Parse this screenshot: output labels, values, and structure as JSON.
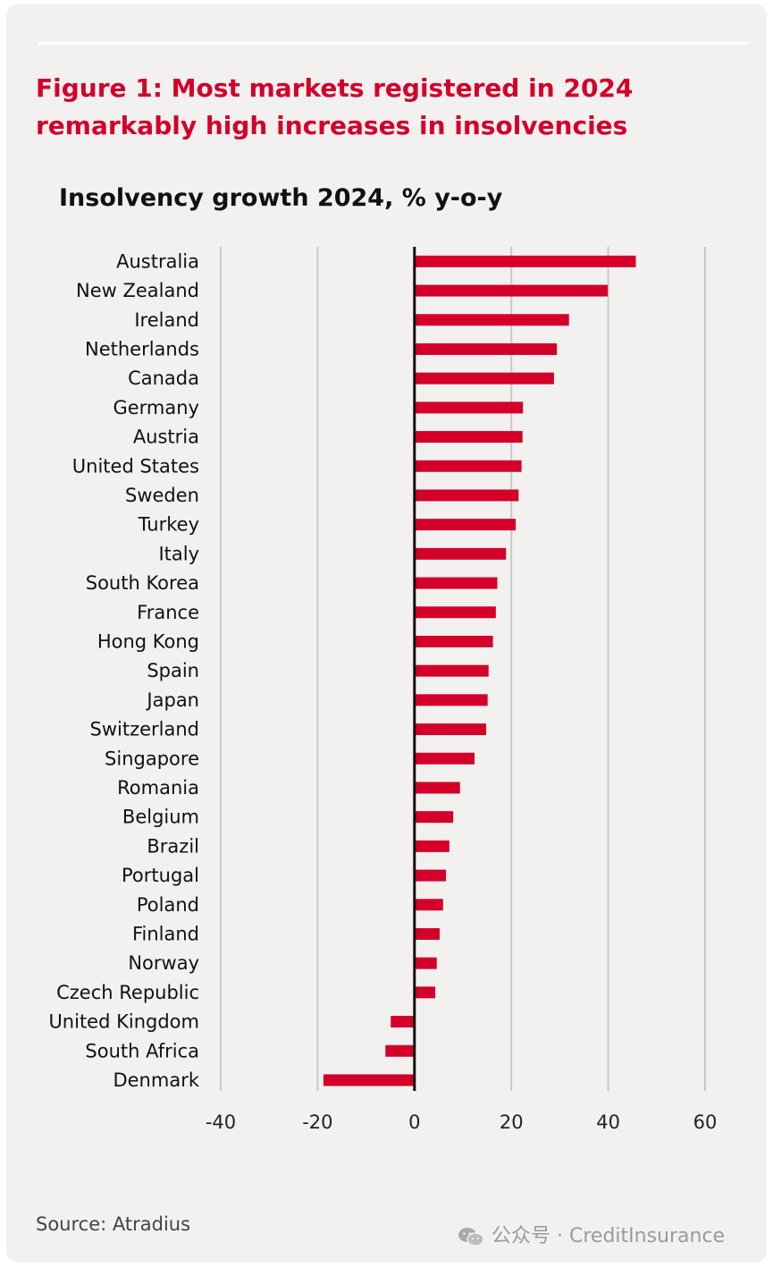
{
  "figure_title": "Figure 1: Most markets registered in 2024 remarkably high increases in insolvencies",
  "source": "Source: Atradius",
  "watermark": "公众号 · CreditInsurance",
  "colors": {
    "bar": "#d4002a",
    "title": "#d4002a",
    "grid": "#c8c8c8",
    "zero_line": "#111111"
  },
  "chart_data": {
    "type": "bar",
    "orientation": "horizontal",
    "title": "Insolvency growth 2024, % y-o-y",
    "xlabel": "",
    "ylabel": "",
    "xlim": [
      -40,
      60
    ],
    "xticks": [
      -40,
      -20,
      0,
      20,
      40,
      60
    ],
    "grid": true,
    "categories": [
      "Australia",
      "New Zealand",
      "Ireland",
      "Netherlands",
      "Canada",
      "Germany",
      "Austria",
      "United States",
      "Sweden",
      "Turkey",
      "Italy",
      "South Korea",
      "France",
      "Hong Kong",
      "Spain",
      "Japan",
      "Switzerland",
      "Singapore",
      "Romania",
      "Belgium",
      "Brazil",
      "Portugal",
      "Poland",
      "Finland",
      "Norway",
      "Czech Republic",
      "United Kingdom",
      "South Africa",
      "Denmark"
    ],
    "values": [
      45.7,
      39.9,
      31.9,
      29.4,
      28.8,
      22.4,
      22.3,
      22.1,
      21.5,
      20.9,
      18.9,
      17.1,
      16.8,
      16.2,
      15.3,
      15.1,
      14.8,
      12.4,
      9.4,
      8.0,
      7.2,
      6.5,
      5.9,
      5.2,
      4.6,
      4.3,
      -4.9,
      -6.0,
      -18.8
    ]
  }
}
